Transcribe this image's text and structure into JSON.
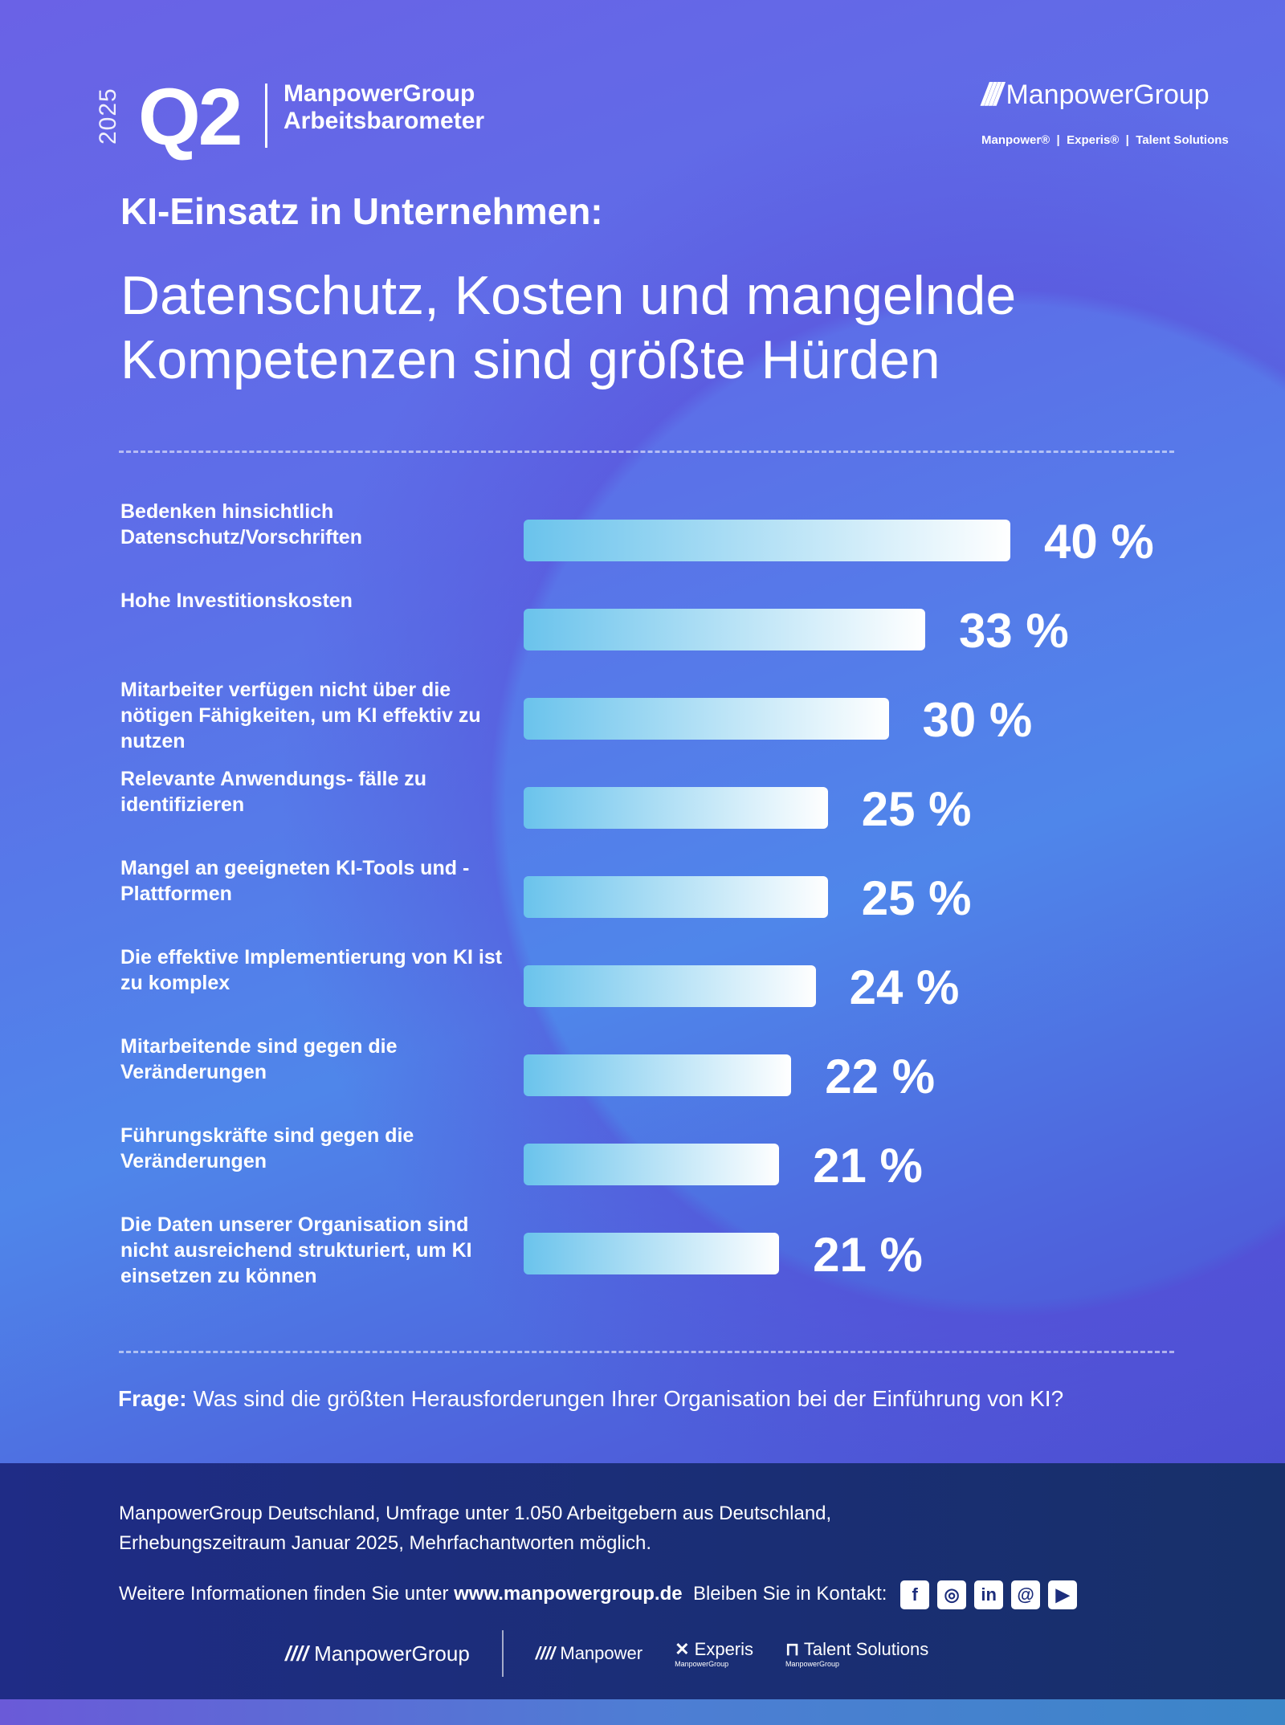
{
  "header": {
    "year": "2025",
    "quarter": "Q2",
    "brand_line1": "ManpowerGroup",
    "brand_line2": "Arbeitsbarometer",
    "logo_text": "ManpowerGroup",
    "logo_mark": "////",
    "sub_brands": "Manpower®  |  Experis®  |  Talent Solutions"
  },
  "title": {
    "line1": "KI-Einsatz in Unternehmen:",
    "line2": "Datenschutz, Kosten und mangelnde Kompetenzen sind größte Hürden"
  },
  "chart_data": {
    "type": "bar",
    "orientation": "horizontal",
    "unit": "%",
    "categories": [
      "Bedenken hinsichtlich Datenschutz/Vorschriften",
      "Hohe Investitionskosten",
      "Mitarbeiter verfügen nicht über die nötigen Fähigkeiten, um KI effektiv zu nutzen",
      "Relevante Anwendungs- fälle zu identifizieren",
      "Mangel an geeigneten KI-Tools und -Plattformen",
      "Die effektive Implementierung von KI ist zu komplex",
      "Mitarbeitende sind gegen die Veränderungen",
      "Führungskräfte sind gegen die Veränderungen",
      "Die Daten unserer Organisation sind nicht ausreichend strukturiert, um KI einsetzen zu können"
    ],
    "values": [
      40,
      33,
      30,
      25,
      25,
      24,
      22,
      21,
      21
    ],
    "labels": [
      "40 %",
      "33 %",
      "30 %",
      "25 %",
      "25 %",
      "24 %",
      "22 %",
      "21 %",
      "21 %"
    ],
    "bar_gradient": [
      "#6ac3ec",
      "#ffffff"
    ]
  },
  "question": {
    "prefix": "Frage:",
    "text": "Was sind die größten Herausforderungen Ihrer Organisation bei der Einführung von KI?"
  },
  "footer": {
    "source_line1": "ManpowerGroup Deutschland, Umfrage unter 1.050 Arbeitgebern aus Deutschland,",
    "source_line2": "Erhebungszeitraum Januar 2025, Mehrfachantworten möglich.",
    "info_prefix": "Weitere Informationen finden Sie unter",
    "url": "www.manpowergroup.de",
    "contact": "Bleiben Sie in Kontakt:",
    "social": [
      {
        "icon": "facebook-icon",
        "glyph": "f"
      },
      {
        "icon": "instagram-icon",
        "glyph": "◎"
      },
      {
        "icon": "linkedin-icon",
        "glyph": "in"
      },
      {
        "icon": "threads-icon",
        "glyph": "@"
      },
      {
        "icon": "youtube-icon",
        "glyph": "▶"
      }
    ],
    "logos": {
      "group": "ManpowerGroup",
      "manpower": "Manpower",
      "experis": "Experis",
      "experis_sub": "ManpowerGroup",
      "talent": "Talent Solutions",
      "talent_sub": "ManpowerGroup"
    }
  }
}
